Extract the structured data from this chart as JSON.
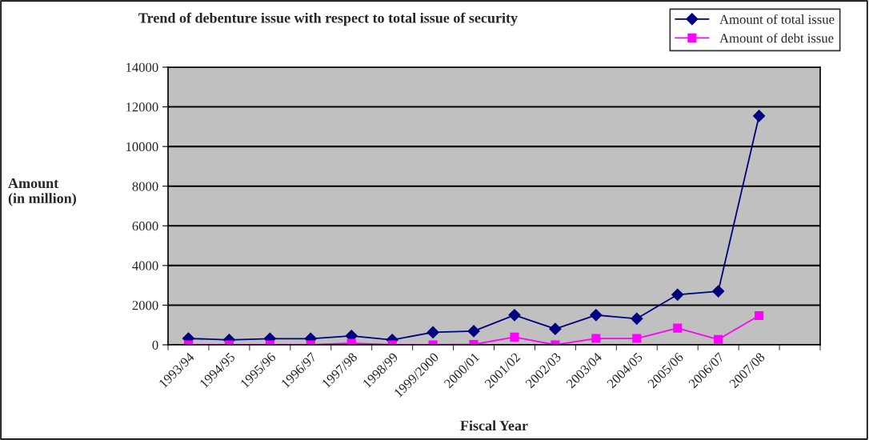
{
  "chart_data": {
    "type": "line",
    "title": "Trend of debenture issue with respect to total issue of security",
    "xlabel": "Fiscal Year",
    "ylabel": "Amount\n(in million)",
    "categories": [
      "1993/94",
      "1994/95",
      "1995/96",
      "1996/97",
      "1997/98",
      "1998/99",
      "1999/2000",
      "2000/01",
      "2001/02",
      "2002/03",
      "2003/04",
      "2004/05",
      "2005/06",
      "2006/07",
      "2007/08",
      null
    ],
    "series": [
      {
        "name": "Amount of total issue",
        "color": "#000080",
        "marker": "diamond",
        "values": [
          320,
          250,
          310,
          310,
          450,
          250,
          630,
          690,
          1500,
          800,
          1500,
          1320,
          2530,
          2700,
          11540,
          null
        ]
      },
      {
        "name": "Amount of debt issue",
        "color": "#ff00ff",
        "marker": "square",
        "values": [
          0,
          0,
          0,
          0,
          80,
          0,
          0,
          20,
          390,
          0,
          320,
          320,
          840,
          270,
          1470,
          null
        ]
      }
    ],
    "ylim": [
      0,
      14000
    ],
    "yticks": [
      0,
      2000,
      4000,
      6000,
      8000,
      10000,
      12000,
      14000
    ],
    "grid": "y",
    "legend": "top right",
    "line_style": "solid"
  }
}
